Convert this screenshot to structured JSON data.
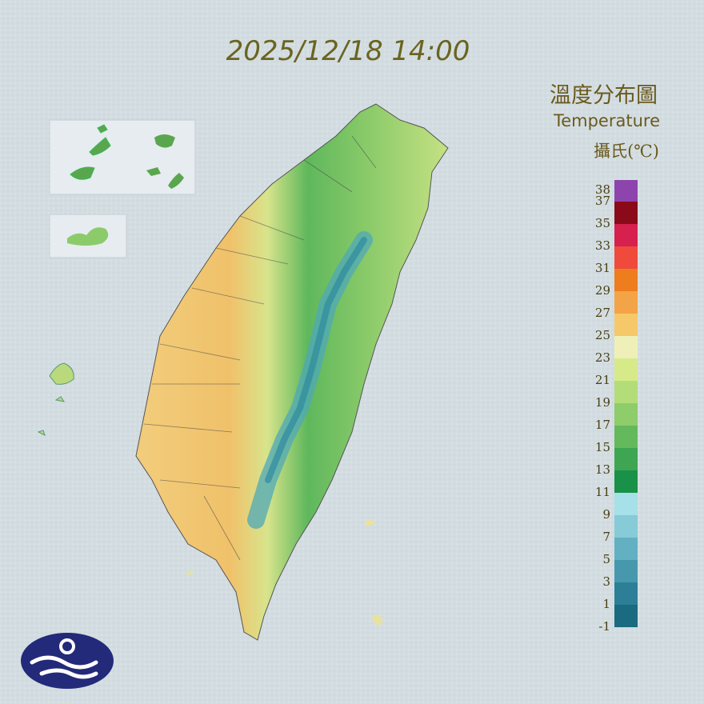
{
  "header": {
    "timestamp": "2025/12/18 14:00"
  },
  "legend": {
    "title": "溫度分布圖",
    "subtitle": "Temperature",
    "unit": "攝氏(℃)",
    "ticks": [
      38,
      37,
      35,
      33,
      31,
      29,
      27,
      25,
      23,
      21,
      19,
      17,
      15,
      13,
      11,
      9,
      7,
      5,
      3,
      1,
      -1
    ],
    "colors": [
      "#8e44ad",
      "#8b0a1a",
      "#d6204e",
      "#f04a3c",
      "#ee7d1e",
      "#f3a446",
      "#f5c96a",
      "#eef0b8",
      "#d6ea8a",
      "#b3dd78",
      "#8fcc6a",
      "#64b95c",
      "#3ea652",
      "#1a9148",
      "#a6e0e8",
      "#86cbd7",
      "#63b0c2",
      "#4798ad",
      "#2c7f96",
      "#1a6a80"
    ]
  }
}
